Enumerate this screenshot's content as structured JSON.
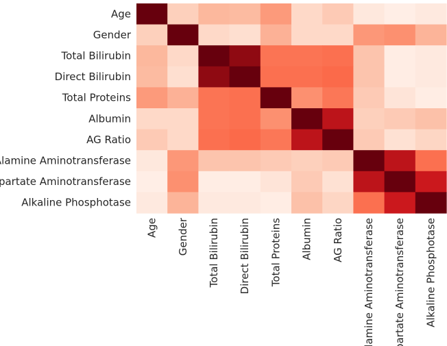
{
  "chart_data": {
    "type": "heatmap",
    "colormap": "Reds",
    "x_labels": [
      "Age",
      "Gender",
      "Total Bilirubin",
      "Direct Bilirubin",
      "Total Proteins",
      "Albumin",
      "AG Ratio",
      "Alamine Aminotransferase",
      "Aspartate Aminotransferase",
      "Alkaline Phosphotase"
    ],
    "y_labels": [
      "Age",
      "Gender",
      "Total Bilirubin",
      "Direct Bilirubin",
      "Total Proteins",
      "Albumin",
      "AG Ratio",
      "Alamine Aminotransferase",
      "Aspartate Aminotransferase",
      "Alkaline Phosphotase"
    ],
    "values": [
      [
        1.0,
        0.18,
        0.26,
        0.25,
        0.35,
        0.15,
        0.2,
        0.08,
        0.04,
        0.07
      ],
      [
        0.18,
        1.0,
        0.15,
        0.13,
        0.28,
        0.15,
        0.15,
        0.36,
        0.38,
        0.27
      ],
      [
        0.26,
        0.15,
        1.0,
        0.92,
        0.47,
        0.47,
        0.48,
        0.22,
        0.05,
        0.07
      ],
      [
        0.25,
        0.13,
        0.92,
        1.0,
        0.48,
        0.48,
        0.5,
        0.22,
        0.05,
        0.07
      ],
      [
        0.35,
        0.28,
        0.47,
        0.48,
        1.0,
        0.38,
        0.46,
        0.2,
        0.1,
        0.05
      ],
      [
        0.15,
        0.15,
        0.47,
        0.48,
        0.38,
        1.0,
        0.8,
        0.18,
        0.2,
        0.23
      ],
      [
        0.2,
        0.15,
        0.48,
        0.5,
        0.46,
        0.8,
        1.0,
        0.2,
        0.12,
        0.16
      ],
      [
        0.08,
        0.36,
        0.22,
        0.22,
        0.2,
        0.18,
        0.2,
        1.0,
        0.8,
        0.48
      ],
      [
        0.04,
        0.38,
        0.05,
        0.05,
        0.1,
        0.2,
        0.12,
        0.8,
        1.0,
        0.75
      ],
      [
        0.07,
        0.27,
        0.07,
        0.07,
        0.05,
        0.23,
        0.16,
        0.48,
        0.75,
        1.0
      ]
    ],
    "value_range": [
      0,
      1
    ],
    "grid": false,
    "legend": "none",
    "title": "",
    "xlabel": "",
    "ylabel": ""
  }
}
